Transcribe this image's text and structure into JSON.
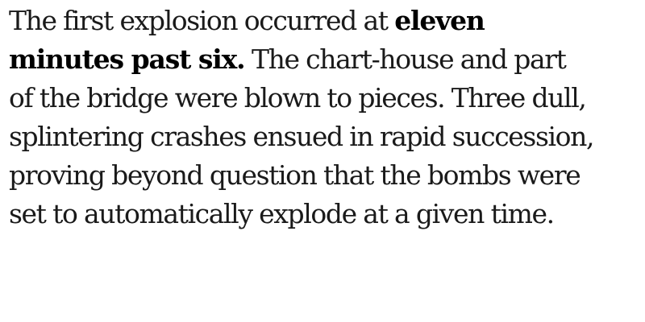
{
  "text": {
    "line1_regular": "The first explosion occurred at ",
    "line1_bold": "eleven",
    "line2_bold": "minutes past six.",
    "line2_regular": " The chart-house and part",
    "line3": "of the bridge were blown to pieces. Three dull,",
    "line4": "splintering crashes ensued in rapid succession,",
    "line5": "proving beyond question that the bombs were",
    "line6": "set to automatically explode at a given time."
  },
  "colors": {
    "text": "#1a1a1a",
    "bold_text": "#000000",
    "background": "#ffffff"
  }
}
